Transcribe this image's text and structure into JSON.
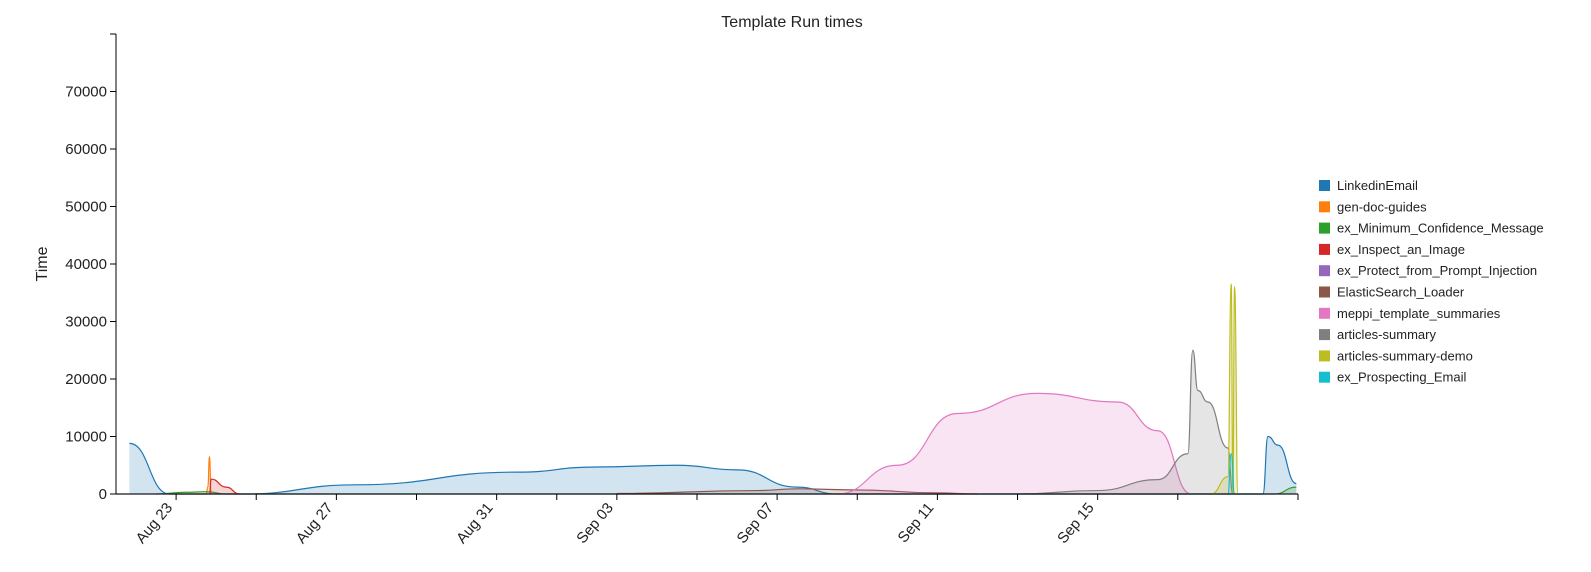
{
  "chart_data": {
    "type": "area",
    "title": "Template Run times",
    "xlabel": "",
    "ylabel": "Time",
    "ylim": [
      0,
      80000
    ],
    "xlim": [
      "2023-08-21T12:00",
      "2023-09-20T00:00"
    ],
    "y_ticks": [
      0,
      10000,
      20000,
      30000,
      40000,
      50000,
      60000,
      70000
    ],
    "y_tick_labels": [
      "0",
      "10000",
      "20000",
      "30000",
      "40000",
      "50000",
      "60000",
      "70000"
    ],
    "x_ticks": [
      {
        "date": "2023-08-23",
        "label": "Aug 23"
      },
      {
        "date": "2023-08-27",
        "label": "Aug 27"
      },
      {
        "date": "2023-08-31",
        "label": "Aug 31"
      },
      {
        "date": "2023-09-03",
        "label": "Sep 03"
      },
      {
        "date": "2023-09-07",
        "label": "Sep 07"
      },
      {
        "date": "2023-09-11",
        "label": "Sep 11"
      },
      {
        "date": "2023-09-15",
        "label": "Sep 15"
      }
    ],
    "legend_position": "right",
    "grid": false,
    "series": [
      {
        "name": "LinkedinEmail",
        "color": "#1f77b4",
        "points": [
          [
            "2023-08-21T20:00",
            8800
          ],
          [
            "2023-08-22T20:00",
            0
          ],
          [
            "2023-08-24T16:00",
            0
          ],
          [
            "2023-08-27T12:00",
            1600
          ],
          [
            "2023-08-31T12:00",
            3800
          ],
          [
            "2023-09-02T12:00",
            4700
          ],
          [
            "2023-09-04T12:00",
            5000
          ],
          [
            "2023-09-06T00:00",
            4200
          ],
          [
            "2023-09-07T12:00",
            1200
          ],
          [
            "2023-09-08T12:00",
            0
          ],
          [
            "2023-09-19T03:00",
            0
          ],
          [
            "2023-09-19T06:00",
            10000
          ],
          [
            "2023-09-19T12:00",
            8500
          ],
          [
            "2023-09-19T23:00",
            1800
          ]
        ]
      },
      {
        "name": "gen-doc-guides",
        "color": "#ff7f0e",
        "points": [
          [
            "2023-08-23T00:00",
            0
          ],
          [
            "2023-08-23T18:00",
            0
          ],
          [
            "2023-08-23T19:00",
            1200
          ],
          [
            "2023-08-23T20:00",
            6500
          ],
          [
            "2023-08-23T21:00",
            0
          ]
        ]
      },
      {
        "name": "ex_Minimum_Confidence_Message",
        "color": "#2ca02c",
        "points": [
          [
            "2023-08-22T12:00",
            0
          ],
          [
            "2023-08-23T06:00",
            300
          ],
          [
            "2023-08-23T18:00",
            400
          ],
          [
            "2023-08-24T06:00",
            0
          ],
          [
            "2023-09-19T10:00",
            0
          ],
          [
            "2023-09-19T23:00",
            1200
          ]
        ]
      },
      {
        "name": "ex_Inspect_an_Image",
        "color": "#d62728",
        "points": [
          [
            "2023-08-23T20:00",
            0
          ],
          [
            "2023-08-23T21:00",
            2600
          ],
          [
            "2023-08-24T06:00",
            1200
          ],
          [
            "2023-08-24T14:00",
            0
          ]
        ]
      },
      {
        "name": "ex_Protect_from_Prompt_Injection",
        "color": "#9467bd",
        "points": [
          [
            "2023-08-21T12:00",
            0
          ],
          [
            "2023-09-20T00:00",
            0
          ]
        ]
      },
      {
        "name": "ElasticSearch_Loader",
        "color": "#8c564b",
        "points": [
          [
            "2023-09-03T00:00",
            100
          ],
          [
            "2023-09-06T12:00",
            600
          ],
          [
            "2023-09-07T12:00",
            900
          ],
          [
            "2023-09-09T00:00",
            700
          ],
          [
            "2023-09-11T00:00",
            200
          ],
          [
            "2023-09-12T00:00",
            0
          ]
        ]
      },
      {
        "name": "meppi_template_summaries",
        "color": "#e377c2",
        "points": [
          [
            "2023-09-08T12:00",
            0
          ],
          [
            "2023-09-10T00:00",
            5000
          ],
          [
            "2023-09-11T12:00",
            14000
          ],
          [
            "2023-09-13T12:00",
            17500
          ],
          [
            "2023-09-15T12:00",
            16000
          ],
          [
            "2023-09-16T12:00",
            11000
          ],
          [
            "2023-09-17T08:00",
            0
          ]
        ]
      },
      {
        "name": "articles-summary",
        "color": "#7f7f7f",
        "points": [
          [
            "2023-09-13T00:00",
            0
          ],
          [
            "2023-09-15T00:00",
            600
          ],
          [
            "2023-09-16T12:00",
            2500
          ],
          [
            "2023-09-17T06:00",
            7000
          ],
          [
            "2023-09-17T09:00",
            25000
          ],
          [
            "2023-09-17T12:00",
            18000
          ],
          [
            "2023-09-17T18:00",
            16000
          ],
          [
            "2023-09-18T06:00",
            8000
          ],
          [
            "2023-09-18T09:00",
            0
          ]
        ]
      },
      {
        "name": "articles-summary-demo",
        "color": "#bcbd22",
        "points": [
          [
            "2023-09-17T20:00",
            0
          ],
          [
            "2023-09-18T06:00",
            3000
          ],
          [
            "2023-09-18T08:00",
            36500
          ],
          [
            "2023-09-18T09:00",
            0
          ],
          [
            "2023-09-18T10:00",
            36000
          ],
          [
            "2023-09-18T12:00",
            0
          ]
        ]
      },
      {
        "name": "ex_Prospecting_Email",
        "color": "#17becf",
        "points": [
          [
            "2023-09-18T06:00",
            0
          ],
          [
            "2023-09-18T08:00",
            7000
          ],
          [
            "2023-09-18T10:00",
            0
          ]
        ]
      }
    ]
  }
}
